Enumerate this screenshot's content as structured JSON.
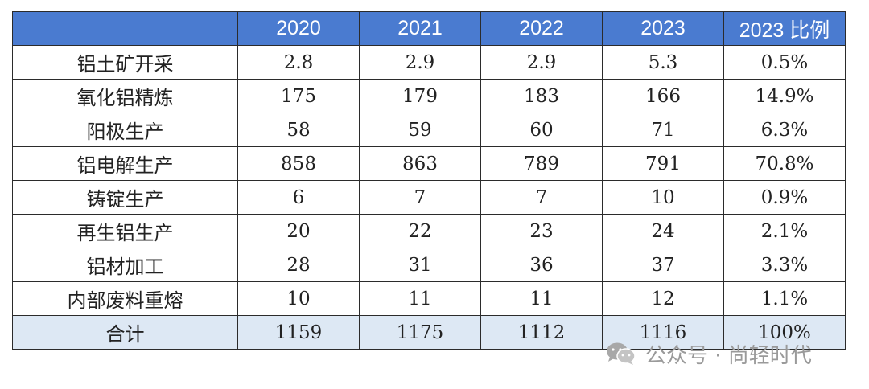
{
  "table": {
    "headers": [
      "",
      "2020",
      "2021",
      "2022",
      "2023",
      "2023 比例"
    ],
    "rows": [
      [
        "铝土矿开采",
        "2.8",
        "2.9",
        "2.9",
        "5.3",
        "0.5%"
      ],
      [
        "氧化铝精炼",
        "175",
        "179",
        "183",
        "166",
        "14.9%"
      ],
      [
        "阳极生产",
        "58",
        "59",
        "60",
        "71",
        "6.3%"
      ],
      [
        "铝电解生产",
        "858",
        "863",
        "789",
        "791",
        "70.8%"
      ],
      [
        "铸锭生产",
        "6",
        "7",
        "7",
        "10",
        "0.9%"
      ],
      [
        "再生铝生产",
        "20",
        "22",
        "23",
        "24",
        "2.1%"
      ],
      [
        "铝材加工",
        "28",
        "31",
        "36",
        "37",
        "3.3%"
      ],
      [
        "内部废料重熔",
        "10",
        "11",
        "11",
        "12",
        "1.1%"
      ]
    ],
    "total": [
      "合计",
      "1159",
      "1175",
      "1112",
      "1116",
      "100%"
    ]
  },
  "watermark": {
    "icon": "wechat-icon",
    "text": "公众号 · 尚轻时代"
  },
  "colors": {
    "header_bg": "#4a7bd0",
    "total_bg": "#dde8f4"
  }
}
